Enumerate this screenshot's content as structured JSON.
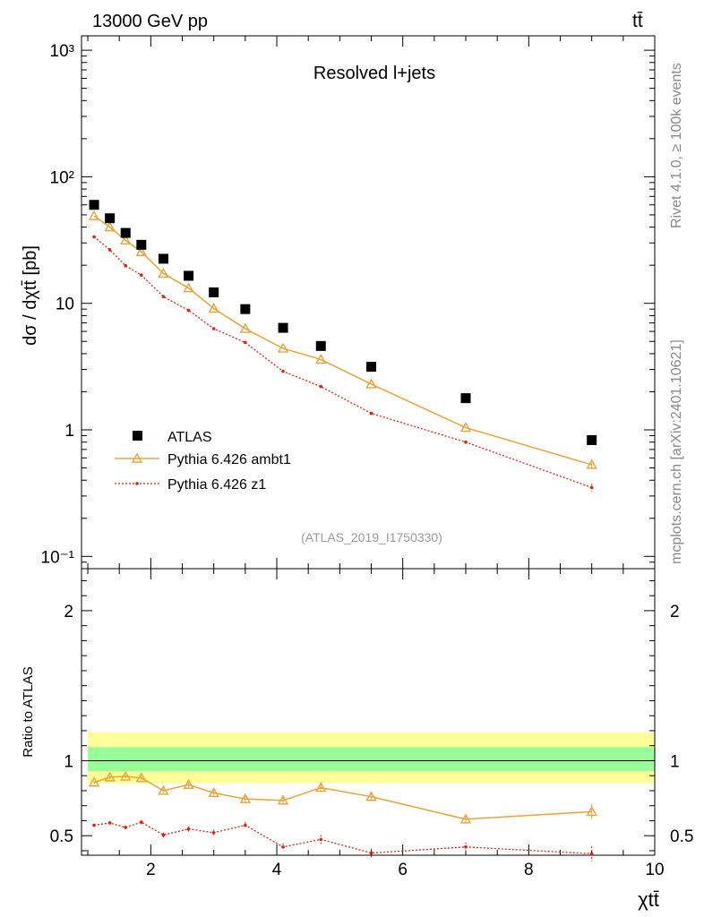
{
  "header": {
    "energy_label": "13000 GeV pp",
    "process_label": "tt̄"
  },
  "side_labels": {
    "rivet": "Rivet 4.1.0, ≥ 100k events",
    "source": "mcplots.cern.ch [arXiv:2401.10621]"
  },
  "colors": {
    "data": "#000000",
    "ambt1": "#e8a33a",
    "z1": "#e02010",
    "band_outer": "#ffff99",
    "band_inner": "#99ff99"
  },
  "chart_data": [
    {
      "type": "scatter",
      "panel": "main",
      "title": "Resolved l+jets",
      "reference": "(ATLAS_2019_I1750330)",
      "ylabel": "dσ / dχtt̄ [pb]",
      "yscale": "log",
      "ylim": [
        0.08,
        1300
      ],
      "xlim": [
        0.9,
        10.0
      ],
      "y_ticks": [
        "10⁻¹",
        "1",
        "10",
        "10²",
        "10³"
      ],
      "x": [
        1.1,
        1.35,
        1.6,
        1.85,
        2.2,
        2.6,
        3.0,
        3.5,
        4.1,
        4.7,
        5.5,
        7.0,
        9.0
      ],
      "series": [
        {
          "name": "ATLAS",
          "marker": "square",
          "values": [
            60,
            47,
            36,
            29,
            22.5,
            16.5,
            12.2,
            9.0,
            6.4,
            4.6,
            3.15,
            1.78,
            0.83
          ]
        },
        {
          "name": "Pythia 6.426 ambt1",
          "marker": "triangle",
          "line": "solid",
          "values": [
            49,
            40,
            31.5,
            25.5,
            17.2,
            13.2,
            9.1,
            6.3,
            4.4,
            3.6,
            2.3,
            1.04,
            0.53
          ]
        },
        {
          "name": "Pythia 6.426 z1",
          "marker": "dot",
          "line": "dotted",
          "values": [
            33.5,
            26.5,
            19.8,
            16.7,
            11.3,
            8.8,
            6.3,
            4.9,
            2.9,
            2.2,
            1.35,
            0.8,
            0.35
          ]
        }
      ]
    },
    {
      "type": "line",
      "panel": "ratio",
      "ylabel": "Ratio to ATLAS",
      "xlabel": "χtt̄",
      "ylim": [
        0.37,
        2.28
      ],
      "xlim": [
        0.9,
        10.0
      ],
      "y_ticks": [
        "0.5",
        "1",
        "2"
      ],
      "x_ticks": [
        "2",
        "4",
        "6",
        "8",
        "10"
      ],
      "x": [
        1.1,
        1.35,
        1.6,
        1.85,
        2.2,
        2.6,
        3.0,
        3.5,
        4.1,
        4.7,
        5.5,
        7.0,
        9.0
      ],
      "band_outer": {
        "low": 0.85,
        "high": 1.19
      },
      "band_inner": {
        "low": 0.93,
        "high": 1.09
      },
      "series": [
        {
          "name": "Pythia 6.426 ambt1",
          "values": [
            0.855,
            0.89,
            0.895,
            0.885,
            0.8,
            0.84,
            0.785,
            0.745,
            0.735,
            0.82,
            0.76,
            0.61,
            0.66
          ]
        },
        {
          "name": "Pythia 6.426 z1",
          "values": [
            0.57,
            0.585,
            0.555,
            0.59,
            0.505,
            0.545,
            0.52,
            0.57,
            0.425,
            0.475,
            0.385,
            0.425,
            0.38
          ]
        }
      ]
    }
  ]
}
